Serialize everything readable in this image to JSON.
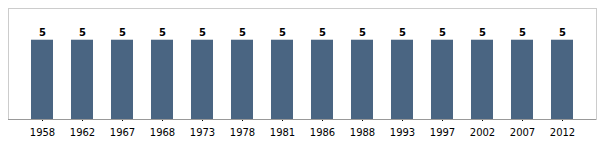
{
  "chart_data": {
    "type": "bar",
    "categories": [
      "1958",
      "1962",
      "1967",
      "1968",
      "1973",
      "1978",
      "1981",
      "1986",
      "1988",
      "1993",
      "1997",
      "2002",
      "2007",
      "2012"
    ],
    "values": [
      5,
      5,
      5,
      5,
      5,
      5,
      5,
      5,
      5,
      5,
      5,
      5,
      5,
      5
    ],
    "color": "#4A6582",
    "ylim": [
      0,
      7.0
    ],
    "data_labels": true,
    "tick_labels": "x"
  }
}
